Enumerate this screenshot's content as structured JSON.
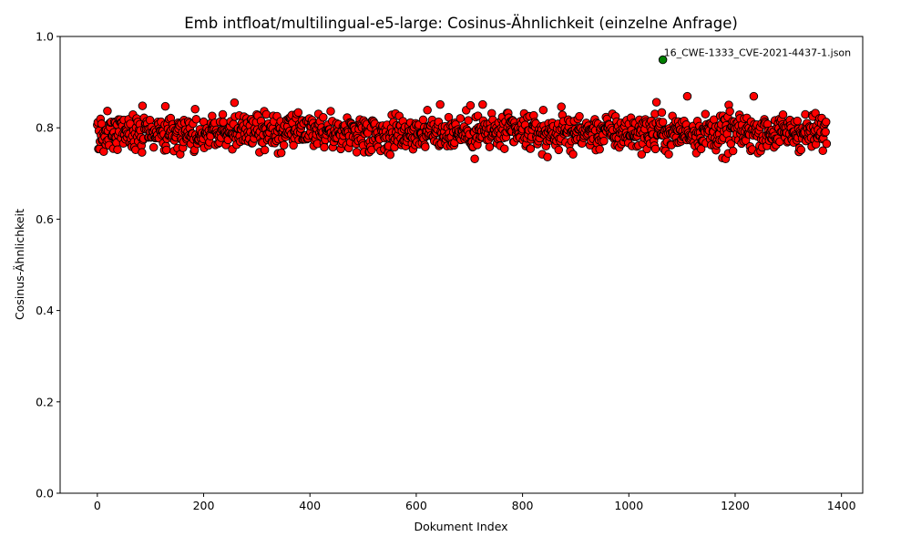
{
  "chart_data": {
    "type": "scatter",
    "title": "Emb intfloat/multilingual-e5-large: Cosinus-Ähnlichkeit (einzelne Anfrage)",
    "xlabel": "Dokument Index",
    "ylabel": "Cosinus-Ähnlichkeit",
    "xlim": [
      -70,
      1440
    ],
    "ylim": [
      0.0,
      1.0
    ],
    "x_ticks": [
      0,
      200,
      400,
      600,
      800,
      1000,
      1200,
      1400
    ],
    "x_tick_labels": [
      "0",
      "200",
      "400",
      "600",
      "800",
      "1000",
      "1200",
      "1400"
    ],
    "y_ticks": [
      0.0,
      0.2,
      0.4,
      0.6,
      0.8,
      1.0
    ],
    "y_tick_labels": [
      "0.0",
      "0.2",
      "0.4",
      "0.6",
      "0.8",
      "1.0"
    ],
    "grid": false,
    "marker_colors": {
      "default": "#ff0000",
      "highlight": "#008000",
      "edge": "#000000"
    },
    "series": [
      {
        "name": "",
        "color": "#ff0000",
        "count": 1373,
        "x_range": [
          0,
          1372
        ],
        "center": 0.79,
        "y_range": [
          0.73,
          0.87
        ],
        "notable_points": [
          {
            "x": 128,
            "y": 0.847
          },
          {
            "x": 258,
            "y": 0.855
          },
          {
            "x": 645,
            "y": 0.851
          },
          {
            "x": 702,
            "y": 0.849
          },
          {
            "x": 725,
            "y": 0.851
          },
          {
            "x": 1052,
            "y": 0.856
          },
          {
            "x": 1110,
            "y": 0.869
          },
          {
            "x": 1235,
            "y": 0.869
          },
          {
            "x": 1188,
            "y": 0.85
          },
          {
            "x": 551,
            "y": 0.741
          },
          {
            "x": 710,
            "y": 0.732
          },
          {
            "x": 847,
            "y": 0.736
          },
          {
            "x": 1176,
            "y": 0.734
          },
          {
            "x": 1182,
            "y": 0.732
          },
          {
            "x": 340,
            "y": 0.744
          },
          {
            "x": 12,
            "y": 0.748
          },
          {
            "x": 1075,
            "y": 0.742
          }
        ]
      },
      {
        "name": "",
        "color": "#008000",
        "points": [
          {
            "x": 1064,
            "y": 0.949
          }
        ]
      }
    ],
    "annotations": [
      {
        "text": "16_CWE-1333_CVE-2021-4437-1.json",
        "x": 1064,
        "y": 0.949
      }
    ]
  }
}
